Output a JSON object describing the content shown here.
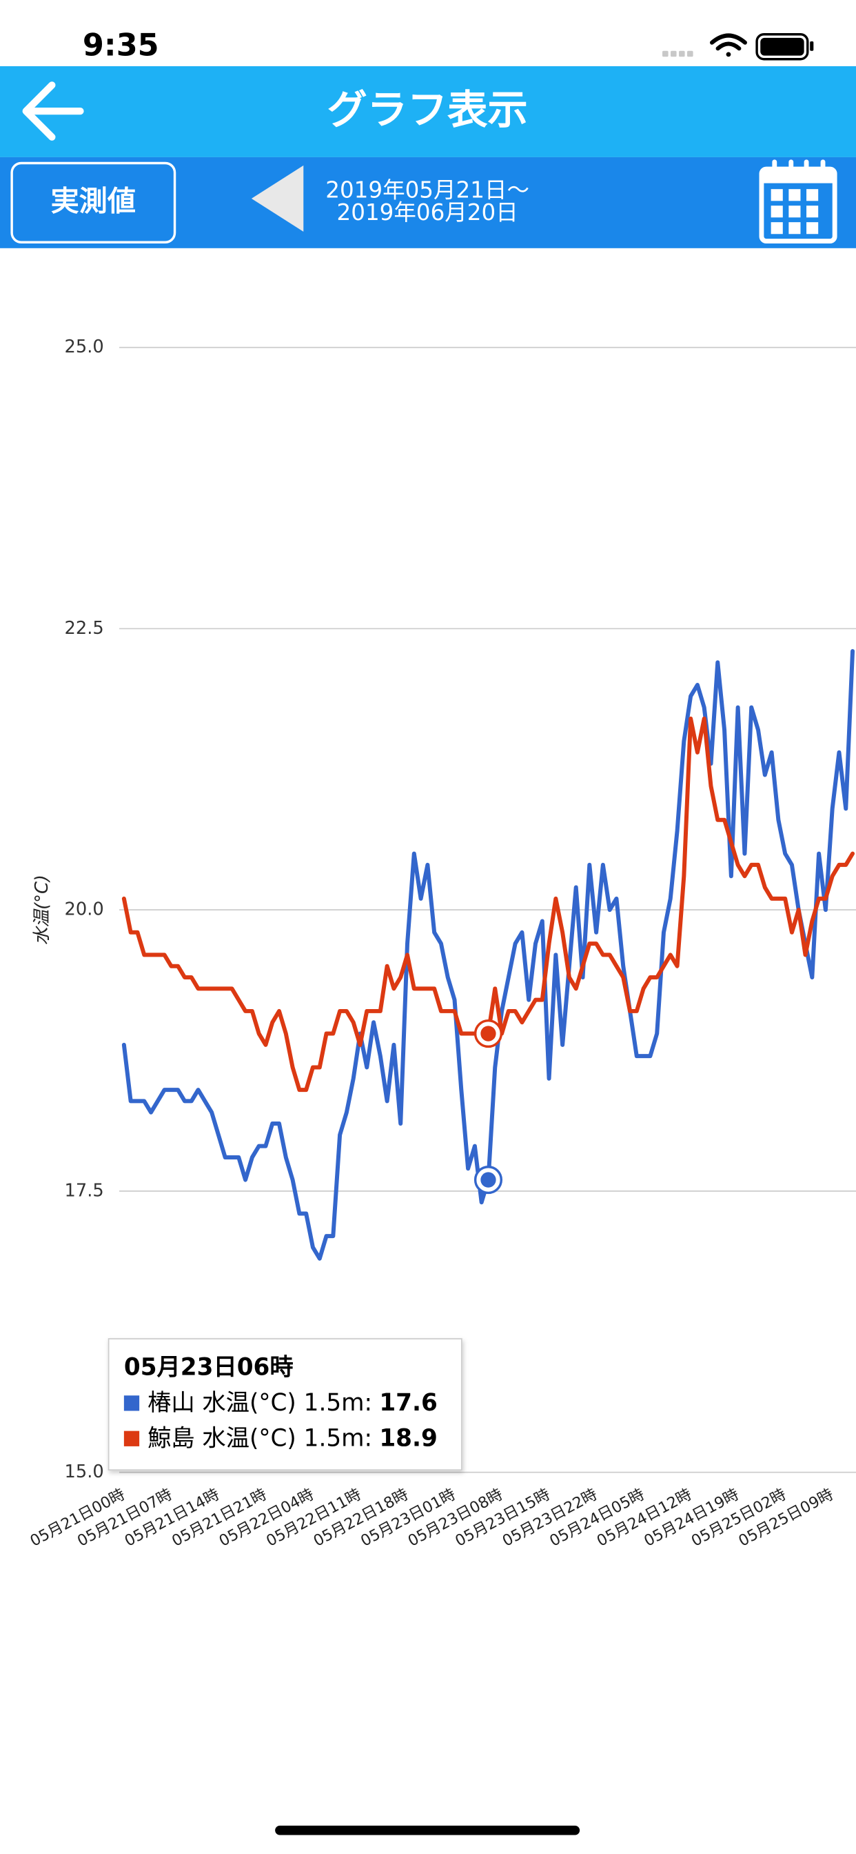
{
  "status_bar": {
    "time": "9:35"
  },
  "header": {
    "title": "グラフ表示"
  },
  "toolbar": {
    "mode_button": "実測値",
    "date_from": "2019年05月21日〜",
    "date_to": "2019年06月20日"
  },
  "chart_data": {
    "type": "line",
    "y_label": "水温(°C)",
    "ylim": [
      15,
      25.5
    ],
    "yticks": [
      {
        "value": 15,
        "label": "15.0"
      },
      {
        "value": 17.5,
        "label": "17.5"
      },
      {
        "value": 20,
        "label": "20.0"
      },
      {
        "value": 22.5,
        "label": "22.5"
      },
      {
        "value": 25,
        "label": "25.0"
      }
    ],
    "grid": true,
    "categories": [
      "05月21日00時",
      null,
      null,
      null,
      null,
      null,
      null,
      "05月21日07時",
      null,
      null,
      null,
      null,
      null,
      null,
      "05月21日14時",
      null,
      null,
      null,
      null,
      null,
      null,
      "05月21日21時",
      null,
      null,
      null,
      null,
      null,
      null,
      "05月22日04時",
      null,
      null,
      null,
      null,
      null,
      null,
      "05月22日11時",
      null,
      null,
      null,
      null,
      null,
      null,
      "05月22日18時",
      null,
      null,
      null,
      null,
      null,
      null,
      "05月23日01時",
      null,
      null,
      null,
      null,
      null,
      null,
      "05月23日08時",
      null,
      null,
      null,
      null,
      null,
      null,
      "05月23日15時",
      null,
      null,
      null,
      null,
      null,
      null,
      "05月23日22時",
      null,
      null,
      null,
      null,
      null,
      null,
      "05月24日05時",
      null,
      null,
      null,
      null,
      null,
      null,
      "05月24日12時",
      null,
      null,
      null,
      null,
      null,
      null,
      "05月24日19時",
      null,
      null,
      null,
      null,
      null,
      null,
      "05月25日02時",
      null,
      null,
      null,
      null,
      null,
      null,
      "05月25日09時",
      null,
      null,
      null
    ],
    "series": [
      {
        "name": "椿山 水温(°C) 1.5m",
        "color": "#3366cc",
        "values": [
          18.8,
          18.3,
          18.3,
          18.3,
          18.2,
          18.3,
          18.4,
          18.4,
          18.4,
          18.3,
          18.3,
          18.4,
          18.3,
          18.2,
          18.0,
          17.8,
          17.8,
          17.8,
          17.6,
          17.8,
          17.9,
          17.9,
          18.1,
          18.1,
          17.8,
          17.6,
          17.3,
          17.3,
          17.0,
          16.9,
          17.1,
          17.1,
          18.0,
          18.2,
          18.5,
          18.9,
          18.6,
          19.0,
          18.7,
          18.3,
          18.8,
          18.1,
          19.7,
          20.5,
          20.1,
          20.4,
          19.8,
          19.7,
          19.4,
          19.2,
          18.4,
          17.7,
          17.9,
          17.4,
          17.6,
          18.6,
          19.1,
          19.4,
          19.7,
          19.8,
          19.2,
          19.7,
          19.9,
          18.5,
          19.6,
          18.8,
          19.5,
          20.2,
          19.4,
          20.4,
          19.8,
          20.4,
          20.0,
          20.1,
          19.5,
          19.1,
          18.7,
          18.7,
          18.7,
          18.9,
          19.8,
          20.1,
          20.7,
          21.5,
          21.9,
          22.0,
          21.8,
          21.3,
          22.2,
          21.6,
          20.3,
          21.8,
          20.5,
          21.8,
          21.6,
          21.2,
          21.4,
          20.8,
          20.5,
          20.4,
          20.0,
          19.7,
          19.4,
          20.5,
          20.0,
          20.9,
          21.4,
          20.9,
          22.3
        ]
      },
      {
        "name": "鯨島 水温(°C) 1.5m",
        "color": "#dc3912",
        "values": [
          20.1,
          19.8,
          19.8,
          19.6,
          19.6,
          19.6,
          19.6,
          19.5,
          19.5,
          19.4,
          19.4,
          19.3,
          19.3,
          19.3,
          19.3,
          19.3,
          19.3,
          19.2,
          19.1,
          19.1,
          18.9,
          18.8,
          19.0,
          19.1,
          18.9,
          18.6,
          18.4,
          18.4,
          18.6,
          18.6,
          18.9,
          18.9,
          19.1,
          19.1,
          19.0,
          18.8,
          19.1,
          19.1,
          19.1,
          19.5,
          19.3,
          19.4,
          19.6,
          19.3,
          19.3,
          19.3,
          19.3,
          19.1,
          19.1,
          19.1,
          18.9,
          18.9,
          18.9,
          18.9,
          18.9,
          19.3,
          18.9,
          19.1,
          19.1,
          19.0,
          19.1,
          19.2,
          19.2,
          19.7,
          20.1,
          19.8,
          19.4,
          19.3,
          19.5,
          19.7,
          19.7,
          19.6,
          19.6,
          19.5,
          19.4,
          19.1,
          19.1,
          19.3,
          19.4,
          19.4,
          19.5,
          19.6,
          19.5,
          20.3,
          21.7,
          21.4,
          21.7,
          21.1,
          20.8,
          20.8,
          20.6,
          20.4,
          20.3,
          20.4,
          20.4,
          20.2,
          20.1,
          20.1,
          20.1,
          19.8,
          20.0,
          19.6,
          19.9,
          20.1,
          20.1,
          20.3,
          20.4,
          20.4,
          20.5
        ]
      }
    ],
    "tooltip": {
      "title": "05月23日06時",
      "index": 54,
      "separator": ":"
    }
  }
}
